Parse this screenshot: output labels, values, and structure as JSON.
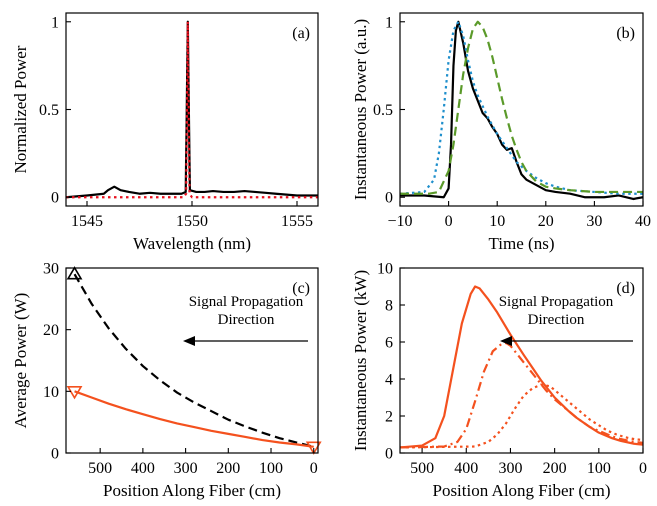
{
  "colors": {
    "black": "#000000",
    "red": "#e8101e",
    "orange_red": "#f4511e",
    "blue": "#1f8fcc",
    "green": "#5b9a2a"
  },
  "chart_data": [
    {
      "panel": "(a)",
      "type": "line",
      "xlabel": "Wavelength (nm)",
      "ylabel": "Normalized Power",
      "xlim": [
        1544,
        1556
      ],
      "ylim": [
        -0.05,
        1.05
      ],
      "xticks": [
        1545,
        1550,
        1555
      ],
      "yticks": [
        0,
        0.5,
        1
      ],
      "ytick_labels": [
        "0",
        "0.5",
        "1"
      ],
      "grid": false,
      "series": [
        {
          "style": "solid",
          "color": "#000000",
          "x": [
            1544,
            1545,
            1545.8,
            1546,
            1546.3,
            1546.6,
            1547,
            1547.5,
            1548,
            1548.5,
            1549,
            1549.5,
            1549.7,
            1549.75,
            1549.8,
            1549.85,
            1549.9,
            1550.2,
            1550.6,
            1551,
            1551.5,
            1552,
            1552.5,
            1553,
            1553.5,
            1554,
            1554.5,
            1555,
            1556
          ],
          "y": [
            0.0,
            0.01,
            0.02,
            0.04,
            0.06,
            0.04,
            0.03,
            0.02,
            0.025,
            0.02,
            0.02,
            0.02,
            0.03,
            0.5,
            1.0,
            0.5,
            0.04,
            0.03,
            0.03,
            0.035,
            0.03,
            0.03,
            0.035,
            0.03,
            0.025,
            0.02,
            0.015,
            0.01,
            0.01
          ]
        },
        {
          "style": "dotted",
          "color": "#e8101e",
          "x": [
            1544,
            1549.6,
            1549.72,
            1549.76,
            1549.8,
            1549.84,
            1549.88,
            1550.0,
            1556
          ],
          "y": [
            0,
            0,
            0.02,
            0.5,
            1.0,
            0.5,
            0.02,
            0,
            0
          ]
        }
      ]
    },
    {
      "panel": "(b)",
      "type": "line",
      "xlabel": "Time (ns)",
      "ylabel": "Instantaneous Power (a.u.)",
      "xlim": [
        -10,
        40
      ],
      "ylim": [
        -0.05,
        1.05
      ],
      "xticks": [
        -10,
        0,
        10,
        20,
        30,
        40
      ],
      "xtick_labels": [
        "−10",
        "0",
        "10",
        "20",
        "30",
        "40"
      ],
      "yticks": [
        0,
        0.5,
        1
      ],
      "ytick_labels": [
        "0",
        "0.5",
        "1"
      ],
      "grid": false,
      "series": [
        {
          "style": "solid",
          "color": "#000000",
          "x": [
            -10,
            -5,
            -1,
            0,
            0.5,
            1,
            1.5,
            2,
            3,
            4,
            5,
            6,
            7,
            8,
            9,
            10,
            11,
            12,
            13,
            14,
            15,
            16,
            18,
            20,
            22,
            25,
            28,
            30,
            32,
            35,
            38,
            40
          ],
          "y": [
            0.01,
            0.01,
            0.0,
            0.05,
            0.3,
            0.75,
            0.95,
            1.0,
            0.88,
            0.72,
            0.62,
            0.55,
            0.48,
            0.45,
            0.4,
            0.36,
            0.3,
            0.27,
            0.28,
            0.2,
            0.13,
            0.1,
            0.07,
            0.04,
            0.03,
            0.02,
            0.0,
            0.0,
            0.0,
            0.01,
            -0.01,
            0.0
          ]
        },
        {
          "style": "dotted",
          "color": "#1f8fcc",
          "x": [
            -10,
            -5,
            -3,
            -2,
            -1,
            0,
            1,
            2,
            3,
            4,
            5,
            6,
            8,
            10,
            12,
            14,
            16,
            18,
            20,
            22,
            25,
            30,
            35,
            40
          ],
          "y": [
            0.02,
            0.03,
            0.1,
            0.25,
            0.5,
            0.78,
            0.95,
            1.0,
            0.92,
            0.78,
            0.66,
            0.58,
            0.46,
            0.36,
            0.28,
            0.2,
            0.15,
            0.11,
            0.08,
            0.06,
            0.04,
            0.03,
            0.02,
            0.02
          ]
        },
        {
          "style": "dashed",
          "color": "#5b9a2a",
          "x": [
            -10,
            -4,
            -2,
            0,
            1,
            2,
            3,
            4,
            5,
            6,
            7,
            8,
            9,
            10,
            11,
            12,
            13,
            14,
            15,
            16,
            17,
            18,
            20,
            22,
            25,
            30,
            35,
            40
          ],
          "y": [
            0.02,
            0.02,
            0.03,
            0.15,
            0.3,
            0.5,
            0.7,
            0.85,
            0.96,
            1.0,
            0.97,
            0.9,
            0.8,
            0.68,
            0.56,
            0.45,
            0.35,
            0.27,
            0.2,
            0.15,
            0.12,
            0.09,
            0.06,
            0.05,
            0.04,
            0.03,
            0.03,
            0.03
          ]
        }
      ]
    },
    {
      "panel": "(c)",
      "type": "line",
      "xlabel": "Position Along Fiber (cm)",
      "ylabel": "Average Power (W)",
      "xlim": [
        580,
        -10
      ],
      "ylim": [
        0,
        30
      ],
      "xticks": [
        500,
        400,
        300,
        200,
        100,
        0
      ],
      "yticks": [
        0,
        10,
        20,
        30
      ],
      "grid": false,
      "annotation": {
        "text_line1": "Signal Propagation",
        "text_line2": "Direction",
        "arrow": "right-to-left"
      },
      "series": [
        {
          "style": "dashed",
          "color": "#000000",
          "x": [
            560,
            520,
            480,
            440,
            400,
            360,
            320,
            280,
            240,
            200,
            160,
            120,
            80,
            40,
            0
          ],
          "y": [
            29,
            24.2,
            20.2,
            16.9,
            14.1,
            11.8,
            9.8,
            8.2,
            6.8,
            5.4,
            4.3,
            3.3,
            2.4,
            1.7,
            1.0
          ]
        },
        {
          "style": "solid",
          "color": "#f4511e",
          "x": [
            560,
            520,
            480,
            440,
            400,
            360,
            320,
            280,
            240,
            200,
            160,
            120,
            80,
            40,
            0
          ],
          "y": [
            10,
            9.0,
            8.0,
            7.1,
            6.3,
            5.5,
            4.8,
            4.2,
            3.6,
            3.1,
            2.6,
            2.1,
            1.7,
            1.4,
            1.0
          ]
        }
      ],
      "markers": [
        {
          "shape": "triangle-up",
          "color": "#000000",
          "x": 560,
          "y": 29
        },
        {
          "shape": "triangle-down",
          "color": "#f4511e",
          "x": 560,
          "y": 10
        },
        {
          "shape": "triangle-down",
          "color": "#f4511e",
          "x": 0,
          "y": 1
        }
      ]
    },
    {
      "panel": "(d)",
      "type": "line",
      "xlabel": "Position Along Fiber (cm)",
      "ylabel": "Instantaneous Power (kW)",
      "xlim": [
        550,
        0
      ],
      "ylim": [
        0,
        10
      ],
      "xticks": [
        500,
        400,
        300,
        200,
        100,
        0
      ],
      "yticks": [
        0,
        2,
        4,
        6,
        8,
        10
      ],
      "grid": false,
      "annotation": {
        "text_line1": "Signal Propagation",
        "text_line2": "Direction",
        "arrow": "right-to-left"
      },
      "series": [
        {
          "style": "solid",
          "color": "#f4511e",
          "x": [
            550,
            500,
            470,
            450,
            430,
            410,
            390,
            380,
            370,
            350,
            330,
            300,
            270,
            250,
            230,
            200,
            170,
            150,
            120,
            100,
            70,
            50,
            20,
            0
          ],
          "y": [
            0.3,
            0.4,
            0.8,
            2.0,
            4.5,
            7.0,
            8.6,
            9.0,
            8.9,
            8.3,
            7.6,
            6.4,
            5.3,
            4.6,
            3.9,
            3.0,
            2.3,
            1.9,
            1.4,
            1.1,
            0.8,
            0.65,
            0.5,
            0.45
          ]
        },
        {
          "style": "dashdot",
          "color": "#f4511e",
          "x": [
            550,
            450,
            420,
            400,
            380,
            360,
            340,
            320,
            310,
            300,
            280,
            260,
            240,
            220,
            200,
            170,
            150,
            120,
            100,
            70,
            50,
            20,
            0
          ],
          "y": [
            0.3,
            0.35,
            0.6,
            1.3,
            2.8,
            4.4,
            5.5,
            5.9,
            5.95,
            5.8,
            5.2,
            4.6,
            4.0,
            3.4,
            2.9,
            2.3,
            1.9,
            1.4,
            1.2,
            0.9,
            0.75,
            0.6,
            0.55
          ]
        },
        {
          "style": "dotted",
          "color": "#f4511e",
          "x": [
            550,
            380,
            350,
            330,
            310,
            290,
            270,
            250,
            230,
            210,
            200,
            180,
            160,
            140,
            120,
            100,
            80,
            60,
            40,
            20,
            0
          ],
          "y": [
            0.3,
            0.35,
            0.6,
            1.0,
            1.6,
            2.4,
            3.1,
            3.5,
            3.7,
            3.6,
            3.4,
            3.0,
            2.6,
            2.2,
            1.8,
            1.5,
            1.2,
            1.0,
            0.85,
            0.75,
            0.7
          ]
        }
      ]
    }
  ]
}
